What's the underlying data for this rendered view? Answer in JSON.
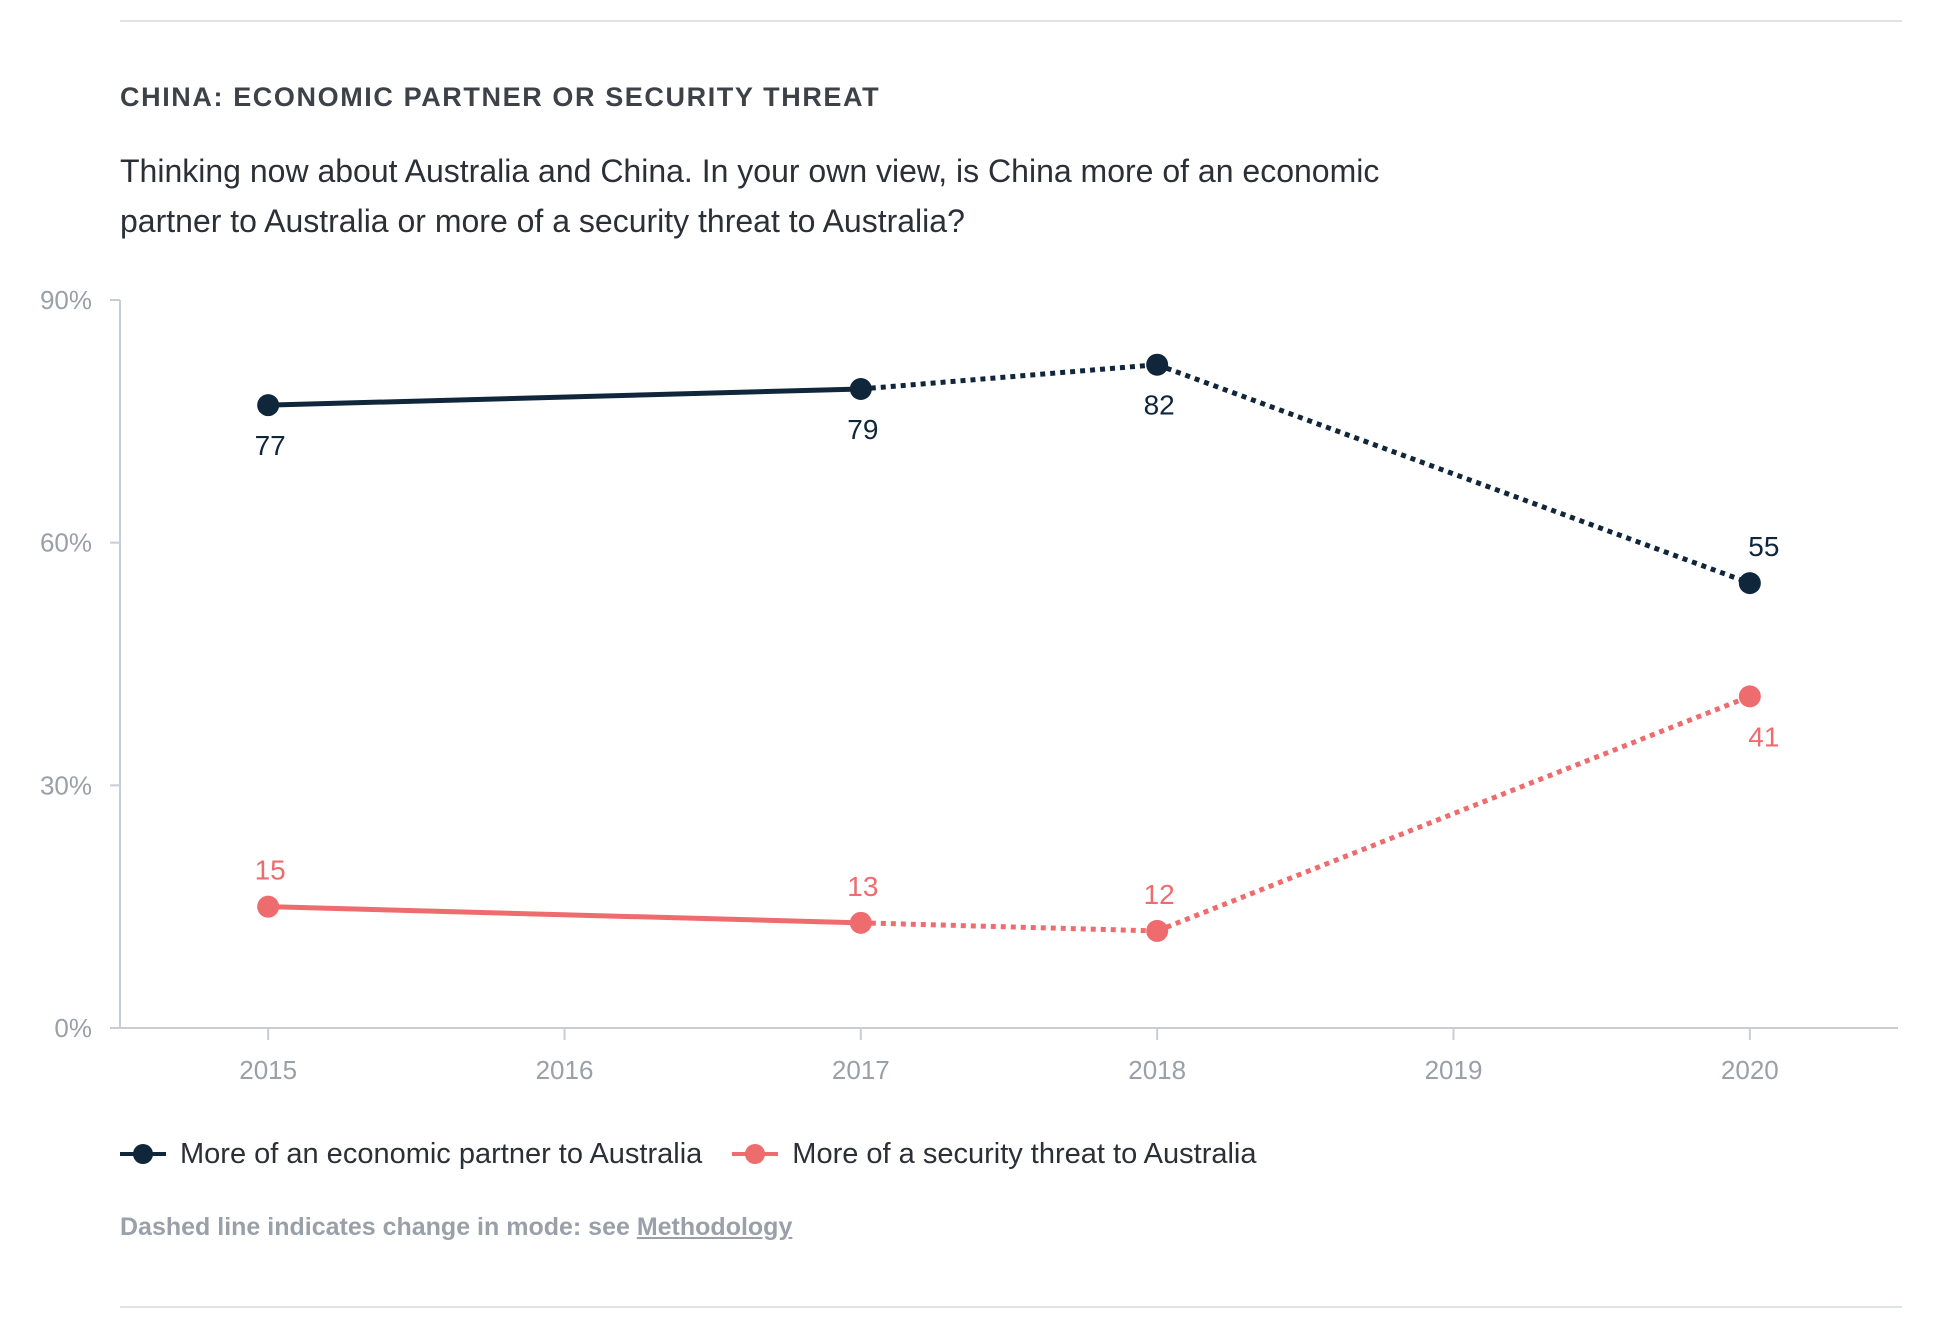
{
  "header": {
    "title": "CHINA: ECONOMIC PARTNER OR SECURITY THREAT",
    "subtitle": "Thinking now about Australia and China. In your own view, is China more of an economic partner to Australia or more of a security threat to Australia?"
  },
  "chart_data": {
    "type": "line",
    "x": [
      2015,
      2016,
      2017,
      2018,
      2019,
      2020
    ],
    "xlim": [
      2014.5,
      2020.5
    ],
    "y_ticks": [
      "0%",
      "30%",
      "60%",
      "90%"
    ],
    "y_tick_values": [
      0,
      30,
      60,
      90
    ],
    "ylim": [
      0,
      90
    ],
    "grid": false,
    "legend_placement": "bottom",
    "series": [
      {
        "name": "More of an economic partner to Australia",
        "color": "#10263b",
        "points": [
          {
            "x": 2015,
            "y": 77,
            "label": "77",
            "label_pos": "below"
          },
          {
            "x": 2017,
            "y": 79,
            "label": "79",
            "label_pos": "below"
          },
          {
            "x": 2018,
            "y": 82,
            "label": "82",
            "label_pos": "below"
          },
          {
            "x": 2020,
            "y": 55,
            "label": "55",
            "label_pos": "above"
          }
        ],
        "dashed_from_index": 1
      },
      {
        "name": "More of a security threat to Australia",
        "color": "#ee6b6e",
        "points": [
          {
            "x": 2015,
            "y": 15,
            "label": "15",
            "label_pos": "above"
          },
          {
            "x": 2017,
            "y": 13,
            "label": "13",
            "label_pos": "above"
          },
          {
            "x": 2018,
            "y": 12,
            "label": "12",
            "label_pos": "above"
          },
          {
            "x": 2020,
            "y": 41,
            "label": "41",
            "label_pos": "below"
          }
        ],
        "dashed_from_index": 1
      }
    ]
  },
  "legend": {
    "items": [
      {
        "label": "More of an economic partner to Australia",
        "color": "#10263b"
      },
      {
        "label": "More of a security threat to Australia",
        "color": "#ee6b6e"
      }
    ]
  },
  "footnote": {
    "text": "Dashed line indicates change in mode: see ",
    "link_label": "Methodology"
  },
  "colors": {
    "axis": "#c9ced6",
    "tick_text": "#9aa0a8"
  }
}
